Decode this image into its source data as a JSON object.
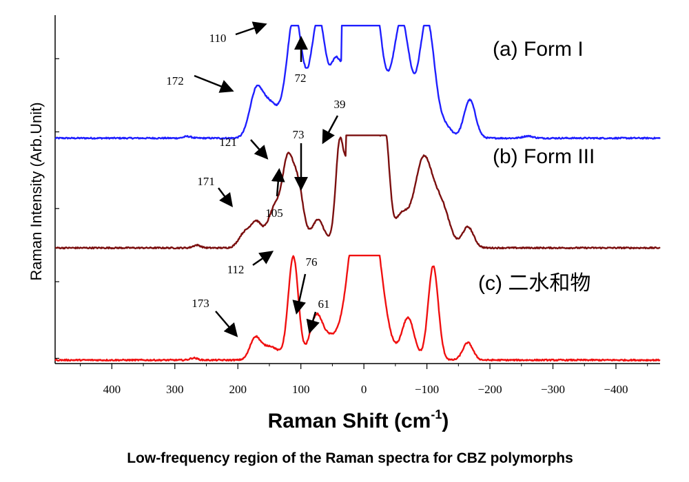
{
  "chart_data": {
    "type": "line",
    "xlabel": "Raman Shift (cm",
    "xlabel_sup": "-1",
    "xlabel_close": ")",
    "ylabel": "Raman Intensity (Arb.Unit)",
    "caption": "Low-frequency region of the Raman spectra for CBZ polymorphs",
    "x_reversed": true,
    "xlim": [
      490,
      -470
    ],
    "ylim": [
      0,
      1
    ],
    "grid": false,
    "x_ticks": [
      {
        "value": 400,
        "label": "400"
      },
      {
        "value": 300,
        "label": "300"
      },
      {
        "value": 200,
        "label": "200"
      },
      {
        "value": 100,
        "label": "100"
      },
      {
        "value": 0,
        "label": "0"
      },
      {
        "value": -100,
        "label": "−100"
      },
      {
        "value": -200,
        "label": "−200"
      },
      {
        "value": -300,
        "label": "−300"
      },
      {
        "value": -400,
        "label": "−400"
      }
    ],
    "series": [
      {
        "name": "(a) Form I",
        "color": "#1f1fff",
        "baseline": 0.647,
        "clip_top": 0.97,
        "saturated_range": [
          35,
          -25
        ],
        "peaks": [
          {
            "x": 280,
            "h": 0.005,
            "w": 6
          },
          {
            "x": 172,
            "h": 0.11,
            "w": 10
          },
          {
            "x": 150,
            "h": 0.1,
            "w": 15
          },
          {
            "x": 110,
            "h": 0.355,
            "w": 12
          },
          {
            "x": 72,
            "h": 0.345,
            "w": 12
          },
          {
            "x": 45,
            "h": 0.15,
            "w": 8
          },
          {
            "x": -60,
            "h": 0.33,
            "w": 13
          },
          {
            "x": -100,
            "h": 0.34,
            "w": 12
          },
          {
            "x": -130,
            "h": 0.03,
            "w": 10
          },
          {
            "x": -168,
            "h": 0.11,
            "w": 9
          },
          {
            "x": -260,
            "h": 0.006,
            "w": 8
          },
          {
            "x": 0,
            "h": 0.7,
            "w": 20
          }
        ],
        "annotations": [
          {
            "label": "110",
            "x": 110
          },
          {
            "label": "72",
            "x": 72
          },
          {
            "label": "172",
            "x": 172
          }
        ]
      },
      {
        "name": "(b) Form III",
        "color": "#7b0f0f",
        "baseline": 0.332,
        "clip_top": 0.655,
        "saturated_range": [
          28,
          -16
        ],
        "peaks": [
          {
            "x": 265,
            "h": 0.008,
            "w": 6
          },
          {
            "x": 190,
            "h": 0.04,
            "w": 9
          },
          {
            "x": 171,
            "h": 0.07,
            "w": 9
          },
          {
            "x": 140,
            "h": 0.12,
            "w": 12
          },
          {
            "x": 121,
            "h": 0.2,
            "w": 8
          },
          {
            "x": 105,
            "h": 0.18,
            "w": 9
          },
          {
            "x": 73,
            "h": 0.08,
            "w": 10
          },
          {
            "x": 39,
            "h": 0.22,
            "w": 6
          },
          {
            "x": -35,
            "h": 0.2,
            "w": 6
          },
          {
            "x": -60,
            "h": 0.08,
            "w": 10
          },
          {
            "x": -95,
            "h": 0.26,
            "w": 15
          },
          {
            "x": -125,
            "h": 0.1,
            "w": 12
          },
          {
            "x": -165,
            "h": 0.06,
            "w": 9
          },
          {
            "x": 0,
            "h": 0.6,
            "w": 20
          }
        ],
        "annotations": [
          {
            "label": "39",
            "x": 39
          },
          {
            "label": "121",
            "x": 121
          },
          {
            "label": "73",
            "x": 73
          },
          {
            "label": "171",
            "x": 171
          },
          {
            "label": "105",
            "x": 105
          }
        ]
      },
      {
        "name": "(c) 二水和物",
        "color": "#f01010",
        "baseline": 0.01,
        "clip_top": 0.31,
        "saturated_range": [
          20,
          -8
        ],
        "peaks": [
          {
            "x": 270,
            "h": 0.006,
            "w": 6
          },
          {
            "x": 173,
            "h": 0.055,
            "w": 8
          },
          {
            "x": 150,
            "h": 0.04,
            "w": 15
          },
          {
            "x": 112,
            "h": 0.295,
            "w": 8
          },
          {
            "x": 76,
            "h": 0.12,
            "w": 10
          },
          {
            "x": 55,
            "h": 0.05,
            "w": 12
          },
          {
            "x": -30,
            "h": 0.03,
            "w": 12
          },
          {
            "x": -70,
            "h": 0.12,
            "w": 10
          },
          {
            "x": -110,
            "h": 0.27,
            "w": 8
          },
          {
            "x": -165,
            "h": 0.05,
            "w": 8
          },
          {
            "x": 0,
            "h": 0.6,
            "w": 20
          }
        ],
        "annotations": [
          {
            "label": "112",
            "x": 112
          },
          {
            "label": "76",
            "x": 76
          },
          {
            "label": "61",
            "x": 61
          },
          {
            "label": "173",
            "x": 173
          }
        ]
      }
    ]
  }
}
